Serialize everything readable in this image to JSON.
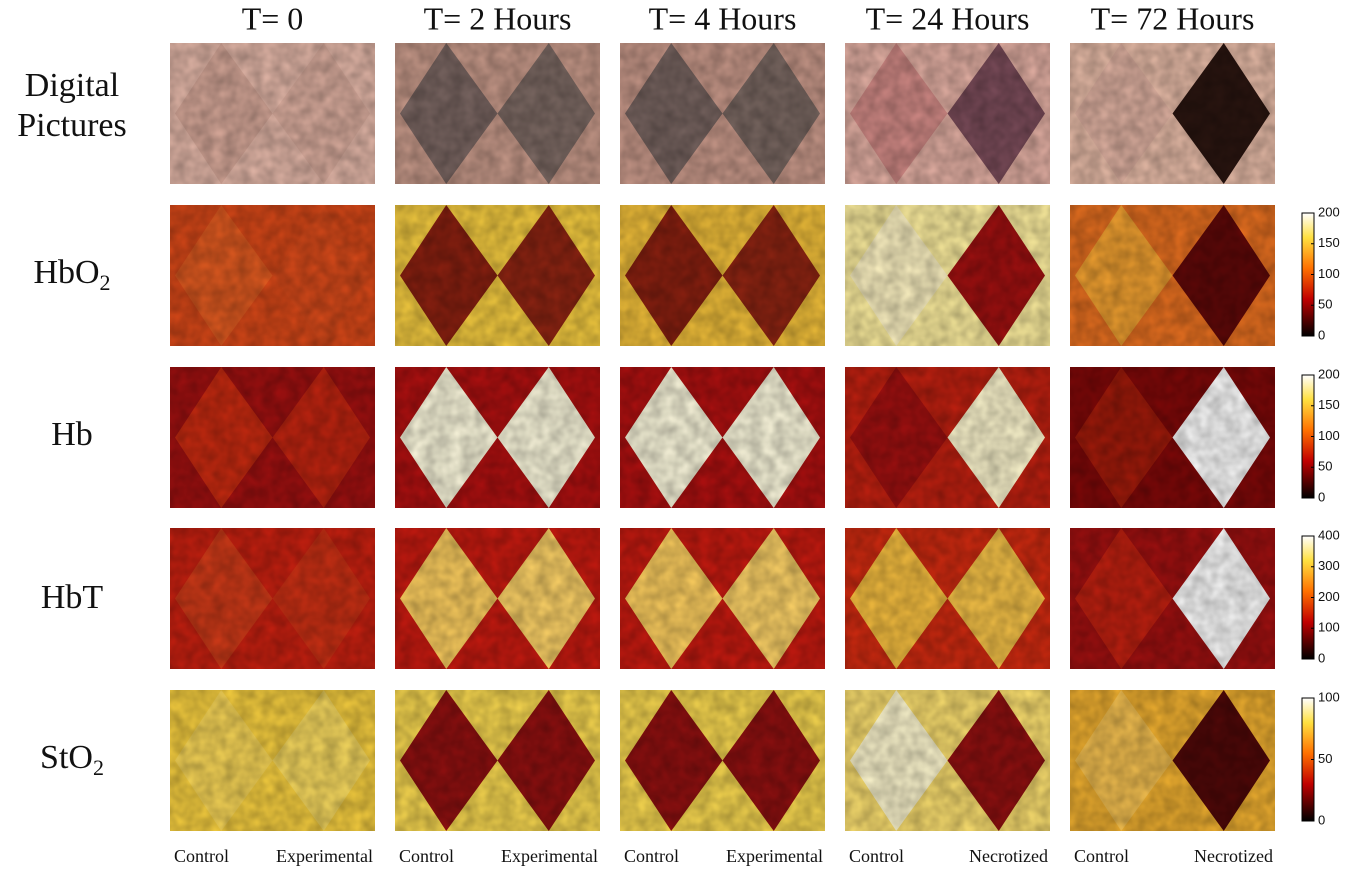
{
  "column_headers": [
    "T= 0",
    "T= 2 Hours",
    "T= 4 Hours",
    "T= 24 Hours",
    "T= 72 Hours"
  ],
  "rows": [
    {
      "label": [
        "Digital",
        "Pictures"
      ]
    },
    {
      "label": "HbO",
      "subscript": "2",
      "colorbar": {
        "range": [
          0,
          200
        ],
        "ticks": [
          0,
          50,
          100,
          150,
          200
        ]
      }
    },
    {
      "label": "Hb",
      "colorbar": {
        "range": [
          0,
          200
        ],
        "ticks": [
          0,
          50,
          100,
          150,
          200
        ]
      }
    },
    {
      "label": "HbT",
      "colorbar": {
        "range": [
          0,
          400
        ],
        "ticks": [
          0,
          100,
          200,
          300,
          400
        ]
      }
    },
    {
      "label": "StO",
      "subscript": "2",
      "colorbar": {
        "range": [
          0,
          100
        ],
        "ticks": [
          0,
          50,
          100
        ]
      }
    }
  ],
  "bottom_labels": [
    [
      "Control",
      "Experimental"
    ],
    [
      "Control",
      "Experimental"
    ],
    [
      "Control",
      "Experimental"
    ],
    [
      "Control",
      "Necrotized"
    ],
    [
      "Control",
      "Necrotized"
    ]
  ]
}
